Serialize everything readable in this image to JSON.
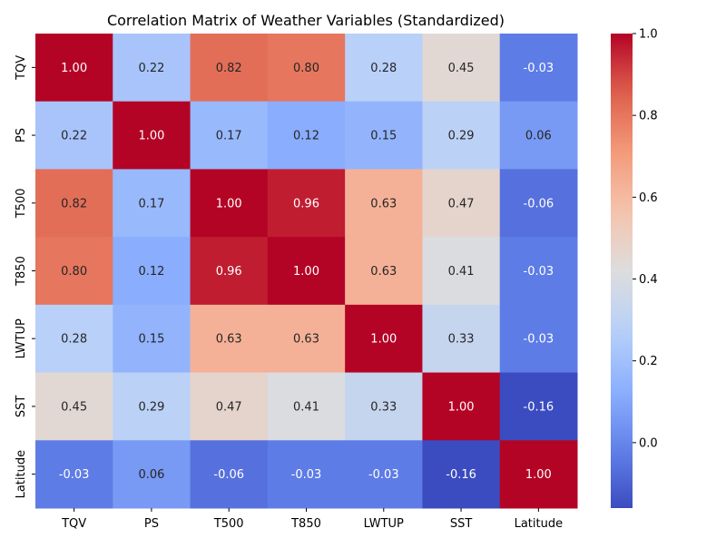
{
  "chart_data": {
    "type": "heatmap",
    "title": "Correlation Matrix of Weather Variables (Standardized)",
    "xlabel": "",
    "ylabel": "",
    "columns": [
      "TQV",
      "PS",
      "T500",
      "T850",
      "LWTUP",
      "SST",
      "Latitude"
    ],
    "rows": [
      "TQV",
      "PS",
      "T500",
      "T850",
      "LWTUP",
      "SST",
      "Latitude"
    ],
    "values": [
      [
        1.0,
        0.22,
        0.82,
        0.8,
        0.28,
        0.45,
        -0.03
      ],
      [
        0.22,
        1.0,
        0.17,
        0.12,
        0.15,
        0.29,
        0.06
      ],
      [
        0.82,
        0.17,
        1.0,
        0.96,
        0.63,
        0.47,
        -0.06
      ],
      [
        0.8,
        0.12,
        0.96,
        1.0,
        0.63,
        0.41,
        -0.03
      ],
      [
        0.28,
        0.15,
        0.63,
        0.63,
        1.0,
        0.33,
        -0.03
      ],
      [
        0.45,
        0.29,
        0.47,
        0.41,
        0.33,
        1.0,
        -0.16
      ],
      [
        -0.03,
        0.06,
        -0.06,
        -0.03,
        -0.03,
        -0.16,
        1.0
      ]
    ],
    "colorbar": {
      "colormap": "coolwarm",
      "vmin": -0.16,
      "vmax": 1.0,
      "ticks": [
        0.0,
        0.2,
        0.4,
        0.6,
        0.8,
        1.0
      ],
      "tick_labels": [
        "0.0",
        "0.2",
        "0.4",
        "0.6",
        "0.8",
        "1.0"
      ]
    },
    "grid": false,
    "legend": "colorbar-right"
  }
}
